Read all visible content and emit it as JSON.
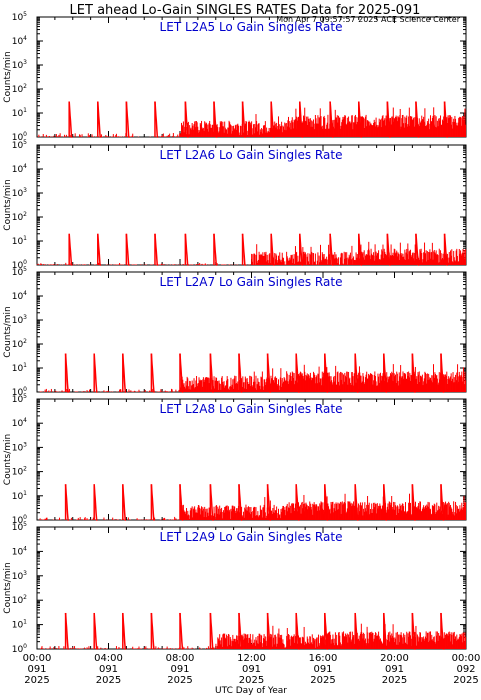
{
  "header": {
    "title": "LET ahead Lo-Gain SINGLES RATES Data for 2025-091",
    "timestamp": "Mon Apr  7 09:57:57 2025 ACE Science Center"
  },
  "colors": {
    "data": "#ff0000",
    "panel_title": "#0000cc",
    "axes": "#000000"
  },
  "chart_data": {
    "type": "line",
    "xlabel": "UTC Day of Year",
    "ylabel": "Counts/min",
    "xlim_hours": [
      0,
      24
    ],
    "ylim": [
      1,
      100000
    ],
    "yscale": "log",
    "y_ticks": [
      {
        "base": "10",
        "exp": "0"
      },
      {
        "base": "10",
        "exp": "1"
      },
      {
        "base": "10",
        "exp": "2"
      },
      {
        "base": "10",
        "exp": "3"
      },
      {
        "base": "10",
        "exp": "4"
      },
      {
        "base": "10",
        "exp": "5"
      }
    ],
    "x_ticks": [
      {
        "hour": 0,
        "time": "00:00",
        "day": "091",
        "year": "2025"
      },
      {
        "hour": 4,
        "time": "04:00",
        "day": "091",
        "year": "2025"
      },
      {
        "hour": 8,
        "time": "08:00",
        "day": "091",
        "year": "2025"
      },
      {
        "hour": 12,
        "time": "12:00",
        "day": "091",
        "year": "2025"
      },
      {
        "hour": 16,
        "time": "16:00",
        "day": "091",
        "year": "2025"
      },
      {
        "hour": 20,
        "time": "20:00",
        "day": "091",
        "year": "2025"
      },
      {
        "hour": 24,
        "time": "00:00",
        "day": "092",
        "year": "2025"
      }
    ],
    "panels": [
      {
        "title": "LET L2A5 Lo Gain Singles Rate",
        "spike_hours": [
          1.8,
          3.4,
          5.0,
          6.6,
          8.3,
          9.9,
          11.5,
          13.1,
          14.7,
          16.4,
          18.0,
          19.6,
          21.2,
          22.8
        ],
        "spike_peak": 30,
        "baseline": [
          {
            "from": 0.0,
            "to": 8.0,
            "level": 1.2
          },
          {
            "from": 8.0,
            "to": 14.0,
            "level": 2.0
          },
          {
            "from": 14.0,
            "to": 24.0,
            "level": 3.5
          }
        ]
      },
      {
        "title": "LET L2A6 Lo Gain Singles Rate",
        "spike_hours": [
          1.8,
          3.4,
          5.0,
          6.6,
          8.3,
          9.9,
          11.5,
          13.1,
          14.7,
          16.4,
          18.0,
          19.6,
          21.2,
          22.8
        ],
        "spike_peak": 20,
        "baseline": [
          {
            "from": 0.0,
            "to": 12.0,
            "level": 1.0
          },
          {
            "from": 12.0,
            "to": 18.0,
            "level": 1.5
          },
          {
            "from": 18.0,
            "to": 24.0,
            "level": 2.0
          }
        ]
      },
      {
        "title": "LET L2A7 Lo Gain Singles Rate",
        "spike_hours": [
          1.6,
          3.2,
          4.8,
          6.4,
          8.0,
          9.7,
          11.3,
          12.9,
          14.5,
          16.1,
          17.8,
          19.4,
          21.0,
          22.6
        ],
        "spike_peak": 40,
        "baseline": [
          {
            "from": 0.0,
            "to": 8.0,
            "level": 1.1
          },
          {
            "from": 8.0,
            "to": 14.0,
            "level": 2.0
          },
          {
            "from": 14.0,
            "to": 24.0,
            "level": 3.0
          }
        ]
      },
      {
        "title": "LET L2A8 Lo Gain Singles Rate",
        "spike_hours": [
          1.6,
          3.2,
          4.8,
          6.4,
          8.0,
          9.7,
          11.3,
          12.9,
          14.5,
          16.1,
          17.8,
          19.4,
          21.0,
          22.6
        ],
        "spike_peak": 30,
        "baseline": [
          {
            "from": 0.0,
            "to": 8.0,
            "level": 1.1
          },
          {
            "from": 8.0,
            "to": 14.0,
            "level": 1.8
          },
          {
            "from": 14.0,
            "to": 24.0,
            "level": 2.5
          }
        ]
      },
      {
        "title": "LET L2A9 Lo Gain Singles Rate",
        "spike_hours": [
          1.6,
          3.2,
          4.8,
          6.4,
          8.0,
          9.7,
          11.3,
          12.9,
          14.5,
          16.1,
          17.8,
          19.4,
          21.0,
          22.6
        ],
        "spike_peak": 30,
        "baseline": [
          {
            "from": 0.0,
            "to": 10.0,
            "level": 1.1
          },
          {
            "from": 10.0,
            "to": 16.0,
            "level": 1.8
          },
          {
            "from": 16.0,
            "to": 24.0,
            "level": 2.2
          }
        ]
      }
    ]
  }
}
